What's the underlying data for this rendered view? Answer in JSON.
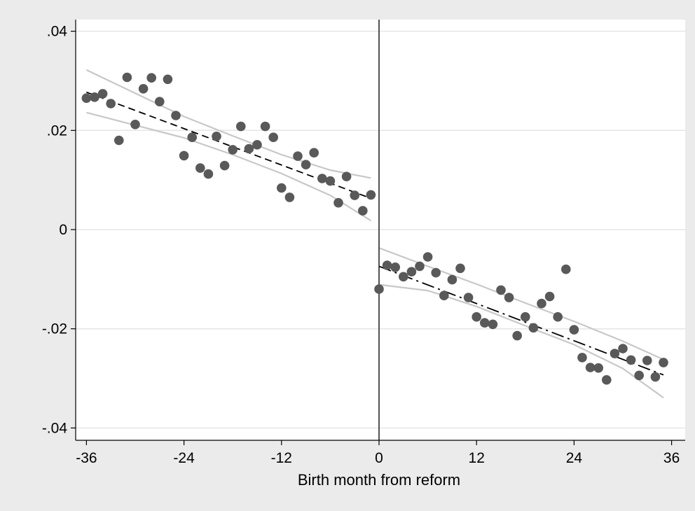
{
  "chart_data": {
    "type": "scatter",
    "title": "",
    "xlabel": "Birth month from reform",
    "ylabel": "",
    "xlim": [
      -37,
      38
    ],
    "ylim": [
      -0.042,
      0.042
    ],
    "x_ticks": [
      {
        "value": -36,
        "label": "-36"
      },
      {
        "value": -24,
        "label": "-24"
      },
      {
        "value": -12,
        "label": "-12"
      },
      {
        "value": 0,
        "label": "0"
      },
      {
        "value": 12,
        "label": "12"
      },
      {
        "value": 24,
        "label": "24"
      },
      {
        "value": 36,
        "label": "36"
      }
    ],
    "y_ticks": [
      {
        "value": 0.04,
        "label": ".04"
      },
      {
        "value": 0.02,
        "label": ".02"
      },
      {
        "value": 0,
        "label": "0"
      },
      {
        "value": -0.02,
        "label": "-.02"
      },
      {
        "value": -0.04,
        "label": "-.04"
      }
    ],
    "grid": "horizontal",
    "legend": "none",
    "cutoff_x": 0,
    "colors": {
      "background": "#ebebeb",
      "plot_area": "#ffffff",
      "points": "#595959",
      "fit": "#000000",
      "ci": "#c8c8c8",
      "grid": "#e6e6e6"
    },
    "series": [
      {
        "type": "scatter",
        "points": [
          [
            -36,
            0.0265
          ],
          [
            -35,
            0.0267
          ],
          [
            -34,
            0.0274
          ],
          [
            -33,
            0.0254
          ],
          [
            -32,
            0.018
          ],
          [
            -31,
            0.0307
          ],
          [
            -30,
            0.0212
          ],
          [
            -29,
            0.0284
          ],
          [
            -28,
            0.0306
          ],
          [
            -27,
            0.0258
          ],
          [
            -26,
            0.0303
          ],
          [
            -25,
            0.023
          ],
          [
            -24,
            0.0149
          ],
          [
            -23,
            0.0186
          ],
          [
            -22,
            0.0124
          ],
          [
            -21,
            0.0112
          ],
          [
            -20,
            0.0188
          ],
          [
            -19,
            0.0129
          ],
          [
            -18,
            0.0161
          ],
          [
            -17,
            0.0208
          ],
          [
            -16,
            0.0163
          ],
          [
            -15,
            0.0171
          ],
          [
            -14,
            0.0208
          ],
          [
            -13,
            0.0186
          ],
          [
            -12,
            0.0084
          ],
          [
            -11,
            0.0065
          ],
          [
            -10,
            0.0148
          ],
          [
            -9,
            0.0131
          ],
          [
            -8,
            0.0155
          ],
          [
            -7,
            0.0103
          ],
          [
            -6,
            0.0098
          ],
          [
            -5,
            0.0054
          ],
          [
            -4,
            0.0107
          ],
          [
            -3,
            0.0069
          ],
          [
            -2,
            0.0038
          ],
          [
            -1,
            0.007
          ],
          [
            0,
            -0.012
          ],
          [
            1,
            -0.0072
          ],
          [
            2,
            -0.0076
          ],
          [
            3,
            -0.0095
          ],
          [
            4,
            -0.0085
          ],
          [
            5,
            -0.0074
          ],
          [
            6,
            -0.0055
          ],
          [
            7,
            -0.0087
          ],
          [
            8,
            -0.0133
          ],
          [
            9,
            -0.0101
          ],
          [
            10,
            -0.0078
          ],
          [
            11,
            -0.0137
          ],
          [
            12,
            -0.0176
          ],
          [
            13,
            -0.0188
          ],
          [
            14,
            -0.0191
          ],
          [
            15,
            -0.0122
          ],
          [
            16,
            -0.0137
          ],
          [
            17,
            -0.0214
          ],
          [
            18,
            -0.0176
          ],
          [
            19,
            -0.0198
          ],
          [
            20,
            -0.0149
          ],
          [
            21,
            -0.0135
          ],
          [
            22,
            -0.0176
          ],
          [
            23,
            -0.008
          ],
          [
            24,
            -0.0202
          ],
          [
            25,
            -0.0258
          ],
          [
            26,
            -0.0278
          ],
          [
            27,
            -0.0279
          ],
          [
            28,
            -0.0303
          ],
          [
            29,
            -0.025
          ],
          [
            30,
            -0.024
          ],
          [
            31,
            -0.0263
          ],
          [
            32,
            -0.0294
          ],
          [
            33,
            -0.0264
          ],
          [
            34,
            -0.0297
          ],
          [
            35,
            -0.0268
          ]
        ]
      },
      {
        "type": "fit_line",
        "style": "dashed",
        "x": [
          -36,
          -1
        ],
        "y": [
          0.0277,
          0.0063
        ]
      },
      {
        "type": "ci_band",
        "side": "left",
        "x": [
          -36,
          -24,
          -18,
          -12,
          -6,
          -1
        ],
        "lower": [
          0.0236,
          0.0185,
          0.0151,
          0.0113,
          0.0069,
          0.0018
        ],
        "upper": [
          0.0322,
          0.0228,
          0.0189,
          0.0151,
          0.012,
          0.0104
        ]
      },
      {
        "type": "fit_line",
        "style": "dash-dot",
        "x": [
          0,
          35
        ],
        "y": [
          -0.0074,
          -0.0293
        ]
      },
      {
        "type": "ci_band",
        "side": "right",
        "x": [
          0,
          6,
          12,
          18,
          24,
          30,
          35
        ],
        "lower": [
          -0.0111,
          -0.0123,
          -0.0155,
          -0.0194,
          -0.0232,
          -0.028,
          -0.0339
        ],
        "upper": [
          -0.0037,
          -0.0074,
          -0.011,
          -0.0148,
          -0.0185,
          -0.0225,
          -0.0262
        ]
      }
    ]
  }
}
